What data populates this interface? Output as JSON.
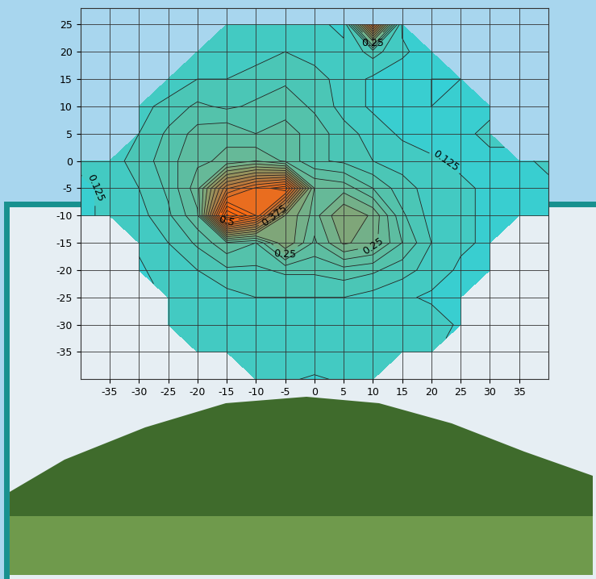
{
  "chart_data": {
    "type": "contour",
    "x": [
      -40,
      -35,
      -30,
      -25,
      -20,
      -15,
      -10,
      -5,
      0,
      5,
      10,
      15,
      20,
      25,
      30,
      35,
      40
    ],
    "y": [
      25,
      20,
      15,
      10,
      5,
      0,
      -5,
      -10,
      -15,
      -20,
      -25,
      -30,
      -35,
      -40
    ],
    "z": [
      [
        null,
        null,
        null,
        null,
        null,
        0.13,
        0.14,
        0.14,
        0.13,
        0.12,
        0.45,
        0.12,
        null,
        null,
        null,
        null,
        null
      ],
      [
        null,
        null,
        null,
        null,
        0.13,
        0.13,
        0.14,
        0.15,
        0.14,
        0.13,
        0.16,
        0.13,
        0.11,
        null,
        null,
        null,
        null
      ],
      [
        null,
        null,
        null,
        0.13,
        0.15,
        0.15,
        0.16,
        0.17,
        0.16,
        0.14,
        0.12,
        0.11,
        0.1,
        0.1,
        null,
        null,
        null
      ],
      [
        null,
        null,
        0.14,
        0.16,
        0.18,
        0.17,
        0.18,
        0.19,
        0.17,
        0.14,
        0.12,
        0.11,
        0.1,
        0.11,
        0.12,
        null,
        null
      ],
      [
        null,
        null,
        0.15,
        0.18,
        0.21,
        0.22,
        0.2,
        0.21,
        0.19,
        0.16,
        0.14,
        0.12,
        0.11,
        0.12,
        0.13,
        null,
        null
      ],
      [
        0.13,
        0.14,
        0.16,
        0.19,
        0.22,
        0.23,
        0.25,
        0.22,
        0.18,
        0.17,
        0.15,
        0.14,
        0.13,
        0.12,
        0.12,
        0.12,
        0.13
      ],
      [
        0.12,
        0.13,
        0.15,
        0.18,
        0.24,
        0.42,
        0.48,
        0.52,
        0.25,
        0.24,
        0.2,
        0.16,
        0.14,
        0.13,
        0.12,
        0.12,
        0.12
      ],
      [
        0.12,
        0.13,
        0.14,
        0.17,
        0.22,
        0.58,
        0.5,
        0.3,
        0.24,
        0.3,
        0.27,
        0.18,
        0.14,
        0.13,
        0.12,
        0.12,
        0.12
      ],
      [
        null,
        null,
        0.13,
        0.15,
        0.18,
        0.22,
        0.2,
        0.3,
        0.22,
        0.28,
        0.26,
        0.2,
        0.15,
        0.13,
        0.12,
        null,
        null
      ],
      [
        null,
        null,
        0.12,
        0.14,
        0.15,
        0.17,
        0.17,
        0.18,
        0.18,
        0.19,
        0.18,
        0.16,
        0.14,
        0.12,
        0.12,
        null,
        null
      ],
      [
        null,
        null,
        null,
        0.13,
        0.14,
        0.14,
        0.15,
        0.15,
        0.15,
        0.15,
        0.14,
        0.13,
        0.12,
        0.12,
        null,
        null,
        null
      ],
      [
        null,
        null,
        null,
        0.13,
        0.13,
        0.14,
        0.14,
        0.14,
        0.14,
        0.14,
        0.13,
        0.13,
        0.14,
        0.12,
        null,
        null,
        null
      ],
      [
        null,
        null,
        null,
        null,
        0.13,
        0.13,
        0.13,
        0.14,
        0.15,
        0.13,
        0.13,
        0.13,
        0.13,
        null,
        null,
        null,
        null
      ],
      [
        null,
        null,
        null,
        null,
        null,
        null,
        0.13,
        0.13,
        0.12,
        0.13,
        0.13,
        null,
        null,
        null,
        null,
        null,
        null
      ]
    ],
    "levels": [
      0.1,
      0.125,
      0.15,
      0.175,
      0.2,
      0.225,
      0.25,
      0.275,
      0.3,
      0.325,
      0.35,
      0.375,
      0.4,
      0.425,
      0.45,
      0.475,
      0.5,
      0.525,
      0.55,
      0.575,
      0.6
    ],
    "contour_labels": [
      0.125,
      0.25,
      0.375,
      0.5
    ],
    "xlim": [
      -40,
      40
    ],
    "ylim": [
      -40,
      28
    ],
    "xticks": [
      -35,
      -30,
      -25,
      -20,
      -15,
      -10,
      -5,
      0,
      5,
      10,
      15,
      20,
      25,
      30,
      35
    ],
    "yticks": [
      -35,
      -30,
      -25,
      -20,
      -15,
      -10,
      -5,
      0,
      5,
      10,
      15,
      20,
      25
    ],
    "grid": true
  }
}
